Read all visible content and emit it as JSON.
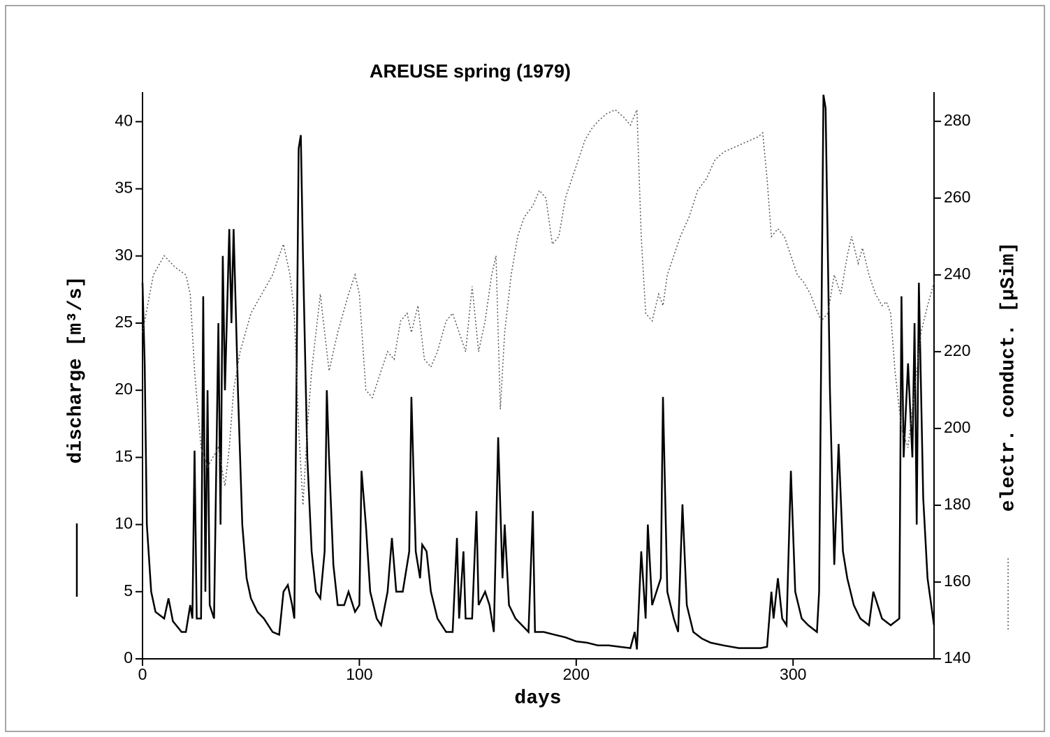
{
  "chart_data": {
    "type": "line",
    "title": "AREUSE spring (1979)",
    "x_label": "days",
    "y_label": "discharge [m³/s]",
    "y2_label": "electr. conduct. [µSim]",
    "xlim": [
      0,
      365
    ],
    "xticks": [
      0,
      100,
      200,
      300
    ],
    "ylim": [
      0,
      42.2
    ],
    "yticks": [
      0,
      5,
      10,
      15,
      20,
      25,
      30,
      35,
      40
    ],
    "y2lim": [
      140,
      287.6
    ],
    "y2ticks": [
      140,
      160,
      180,
      200,
      220,
      240,
      260,
      280
    ],
    "series": [
      {
        "color": "#000000",
        "line_style": "solid",
        "x": [
          0,
          1,
          2,
          4,
          6,
          10,
          12,
          14,
          18,
          20,
          22,
          23,
          24,
          25,
          27,
          28,
          29,
          30,
          31,
          33,
          35,
          36,
          37,
          38,
          40,
          41,
          42,
          44,
          46,
          48,
          50,
          53,
          56,
          60,
          63,
          65,
          67,
          69,
          70,
          72,
          73,
          74,
          76,
          78,
          80,
          82,
          84,
          85,
          86,
          88,
          90,
          93,
          95,
          98,
          100,
          101,
          103,
          105,
          108,
          110,
          113,
          115,
          117,
          120,
          123,
          124,
          126,
          128,
          129,
          131,
          133,
          136,
          140,
          143,
          145,
          146,
          148,
          149,
          152,
          154,
          155,
          158,
          160,
          162,
          164,
          166,
          167,
          169,
          172,
          175,
          178,
          180,
          181,
          185,
          190,
          195,
          200,
          205,
          210,
          215,
          220,
          225,
          227,
          228,
          230,
          232,
          233,
          235,
          237,
          239,
          240,
          242,
          245,
          247,
          249,
          251,
          254,
          258,
          262,
          268,
          275,
          280,
          285,
          288,
          290,
          291,
          293,
          295,
          297,
          299,
          301,
          304,
          307,
          311,
          312,
          314,
          315,
          317,
          319,
          321,
          323,
          325,
          328,
          331,
          335,
          337,
          339,
          341,
          345,
          349,
          350,
          351,
          353,
          355,
          356,
          357,
          358,
          360,
          362,
          365
        ],
        "values": [
          28,
          22,
          10,
          5,
          3.5,
          3,
          4.5,
          2.8,
          2,
          2,
          4,
          3,
          15.5,
          3,
          3,
          27,
          5,
          20,
          4,
          3,
          25,
          10,
          30,
          20,
          32,
          25,
          32,
          20,
          10,
          6,
          4.5,
          3.5,
          3,
          2,
          1.8,
          5,
          5.5,
          4,
          3,
          38,
          39,
          30,
          15,
          8,
          5,
          4.5,
          8,
          20,
          15,
          7,
          4,
          4,
          5,
          3.5,
          4,
          14,
          10,
          5,
          3,
          2.5,
          5,
          9,
          5,
          5,
          8,
          19.5,
          8,
          6,
          8.5,
          8,
          5,
          3,
          2,
          2,
          9,
          3,
          8,
          3,
          3,
          11,
          4,
          5,
          4,
          2,
          16.5,
          6,
          10,
          4,
          3,
          2.5,
          2,
          11,
          2,
          2,
          1.8,
          1.6,
          1.3,
          1.2,
          1,
          1,
          0.9,
          0.8,
          2,
          0.7,
          8,
          3,
          10,
          4,
          5,
          6,
          19.5,
          5,
          3,
          2,
          11.5,
          4,
          2,
          1.5,
          1.2,
          1,
          0.8,
          0.8,
          0.8,
          0.9,
          5,
          3,
          6,
          3,
          2.5,
          14,
          5,
          3,
          2.5,
          2,
          5,
          42,
          41,
          20,
          7,
          16,
          8,
          6,
          4,
          3,
          2.5,
          5,
          4,
          3,
          2.5,
          3,
          27,
          15,
          22,
          15,
          25,
          10,
          28,
          12,
          6,
          2.5
        ]
      },
      {
        "color": "#555555",
        "line_style": "dotted",
        "axis": "y2",
        "x": [
          0,
          5,
          10,
          15,
          20,
          22,
          24,
          27,
          30,
          35,
          38,
          40,
          42,
          45,
          50,
          55,
          60,
          63,
          65,
          68,
          70,
          72,
          74,
          76,
          78,
          82,
          84,
          86,
          90,
          95,
          98,
          100,
          103,
          106,
          110,
          113,
          116,
          119,
          122,
          124,
          127,
          130,
          133,
          136,
          140,
          143,
          146,
          149,
          152,
          155,
          158,
          161,
          163,
          165,
          167,
          170,
          173,
          176,
          180,
          183,
          186,
          189,
          192,
          195,
          198,
          201,
          204,
          207,
          210,
          214,
          218,
          222,
          225,
          228,
          230,
          232,
          235,
          238,
          240,
          242,
          245,
          248,
          252,
          256,
          260,
          264,
          268,
          272,
          276,
          280,
          284,
          286,
          288,
          290,
          293,
          296,
          299,
          302,
          305,
          308,
          310,
          313,
          316,
          319,
          322,
          325,
          327,
          330,
          332,
          335,
          338,
          341,
          343,
          345,
          347,
          350,
          353,
          356,
          359,
          362,
          365
        ],
        "values": [
          225,
          240,
          245,
          242,
          240,
          235,
          215,
          195,
          190,
          195,
          185,
          195,
          210,
          220,
          230,
          235,
          240,
          245,
          248,
          240,
          230,
          200,
          180,
          200,
          215,
          235,
          225,
          215,
          225,
          235,
          240,
          235,
          210,
          208,
          215,
          220,
          218,
          228,
          230,
          225,
          232,
          218,
          216,
          220,
          228,
          230,
          225,
          220,
          237,
          220,
          228,
          240,
          245,
          205,
          225,
          240,
          250,
          255,
          258,
          262,
          260,
          248,
          250,
          260,
          265,
          270,
          275,
          278,
          280,
          282,
          283,
          281,
          279,
          283,
          250,
          230,
          228,
          235,
          232,
          240,
          245,
          250,
          255,
          262,
          265,
          270,
          272,
          273,
          274,
          275,
          276,
          277,
          265,
          250,
          252,
          250,
          245,
          240,
          238,
          235,
          232,
          228,
          230,
          240,
          235,
          245,
          250,
          243,
          247,
          240,
          235,
          232,
          233,
          230,
          215,
          200,
          195,
          210,
          225,
          232,
          238
        ]
      }
    ]
  }
}
